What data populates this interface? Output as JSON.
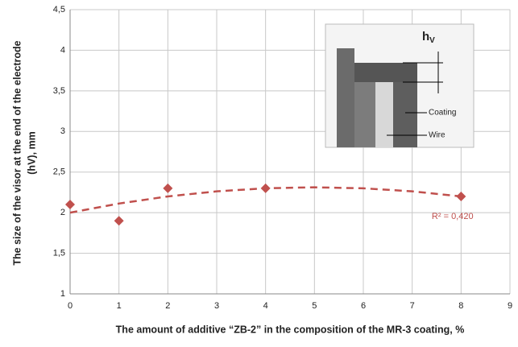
{
  "chart_data": {
    "type": "scatter",
    "x_label": "The amount of additive “ZB-2” in the composition of the MR-3 coating, %",
    "y_label": [
      "The size of the visor at the end of the electrode",
      "(hV), mm"
    ],
    "x": [
      0,
      1,
      2,
      4,
      8
    ],
    "series": [
      {
        "color": "#c0504d",
        "values": [
          2.1,
          1.9,
          2.3,
          2.3,
          2.2
        ]
      }
    ],
    "trendline": {
      "color": "#c0504d",
      "x": [
        0,
        1,
        2,
        3,
        4,
        5,
        6,
        7,
        8
      ],
      "values": [
        2,
        2.1125,
        2.2,
        2.2625,
        2.3,
        2.3125,
        2.3,
        2.2625,
        2.2
      ],
      "label": "R² = 0,420"
    },
    "xlim": [
      0,
      9
    ],
    "xticks": [
      0,
      1,
      2,
      3,
      4,
      5,
      6,
      7,
      8,
      9
    ],
    "ylim": [
      1,
      4.5
    ],
    "yticks": [
      1,
      {
        "value": 1.5,
        "label": "1,5"
      },
      2,
      {
        "value": 2.5,
        "label": "2,5"
      },
      3,
      {
        "value": 3.5,
        "label": "3,5"
      },
      4,
      {
        "value": 4.5,
        "label": "4,5"
      }
    ],
    "grid": true,
    "inset": {
      "h_label": "h",
      "h_sub": "V",
      "coating_label": "Coating",
      "wire_label": "Wire"
    }
  }
}
